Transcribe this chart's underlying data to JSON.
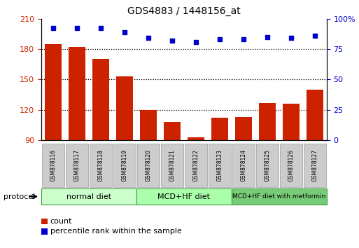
{
  "title": "GDS4883 / 1448156_at",
  "samples": [
    "GSM878116",
    "GSM878117",
    "GSM878118",
    "GSM878119",
    "GSM878120",
    "GSM878121",
    "GSM878122",
    "GSM878123",
    "GSM878124",
    "GSM878125",
    "GSM878126",
    "GSM878127"
  ],
  "counts": [
    185,
    182,
    170,
    153,
    120,
    108,
    93,
    112,
    113,
    127,
    126,
    140
  ],
  "percentile_ranks": [
    92,
    92,
    92,
    89,
    84,
    82,
    81,
    83,
    83,
    85,
    84,
    86
  ],
  "ylim_left": [
    90,
    210
  ],
  "ylim_right": [
    0,
    100
  ],
  "yticks_left": [
    90,
    120,
    150,
    180,
    210
  ],
  "yticks_right": [
    0,
    25,
    50,
    75,
    100
  ],
  "bar_color": "#cc2200",
  "dot_color": "#0000cc",
  "grid_color": "#000000",
  "groups": [
    {
      "label": "normal diet",
      "start": 0,
      "end": 4,
      "color": "#ccffcc"
    },
    {
      "label": "MCD+HF diet",
      "start": 4,
      "end": 8,
      "color": "#aaffaa"
    },
    {
      "label": "MCD+HF diet with metformin",
      "start": 8,
      "end": 12,
      "color": "#77cc77"
    }
  ],
  "protocol_label": "protocol",
  "legend_count": "count",
  "legend_percentile": "percentile rank within the sample",
  "tick_label_color_left": "#cc2200",
  "tick_label_color_right": "#0000cc",
  "sample_box_color": "#cccccc",
  "sample_box_border": "#999999"
}
